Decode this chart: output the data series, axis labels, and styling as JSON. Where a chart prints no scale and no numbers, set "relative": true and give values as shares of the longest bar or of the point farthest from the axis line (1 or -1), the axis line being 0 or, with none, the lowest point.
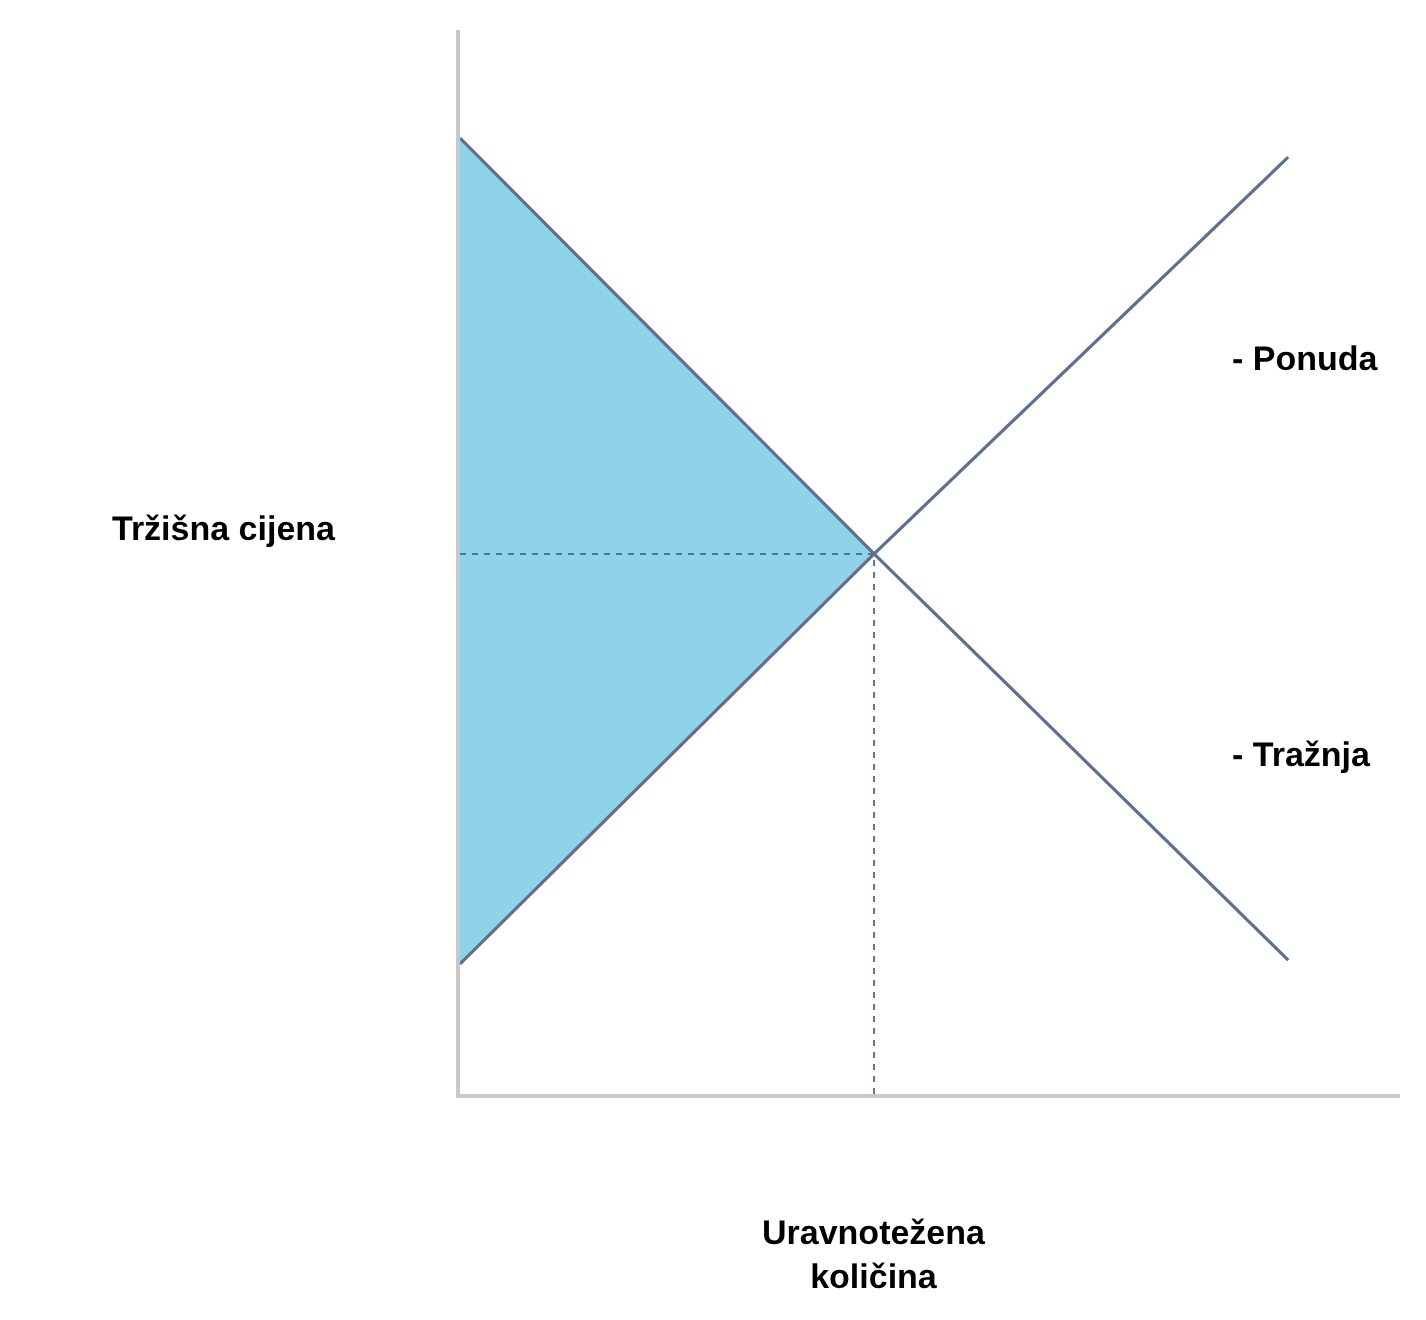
{
  "chart_data": {
    "type": "line",
    "relative": true,
    "legend": false,
    "line_style": "solid",
    "marker": "none",
    "categories": [
      null,
      null,
      null
    ],
    "series": [
      {
        "name": "- Ponuda",
        "color": "#5c7090",
        "values": [
          0.136,
          0.565,
          0.98
        ]
      },
      {
        "name": "- Tražnja",
        "color": "#5c7090",
        "values": [
          1,
          0.565,
          0.14
        ],
        "lower": [
          0.136,
          0.565,
          null
        ],
        "upper": [
          1,
          0.565,
          null
        ]
      }
    ],
    "xlabel": "Uravnotežena količina",
    "ylabel": "Tržišna cijena",
    "ref_lines": [
      {
        "axis": "y",
        "value": 0.565,
        "color": "#5c7090",
        "line_style": "dotted"
      }
    ]
  }
}
